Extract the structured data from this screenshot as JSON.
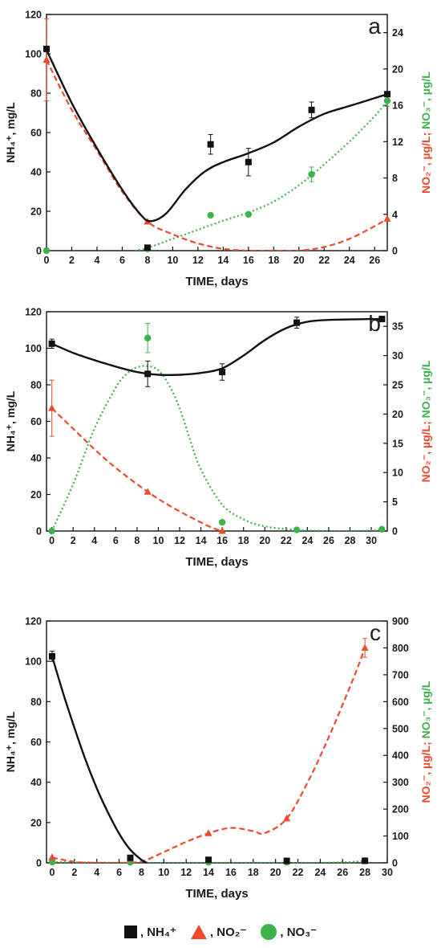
{
  "legend": [
    {
      "symbol": "square",
      "color": "#111111",
      "label": ", NH₄⁺"
    },
    {
      "symbol": "triangle",
      "color": "#ee4a2b",
      "label": ", NO₂⁻"
    },
    {
      "symbol": "circle",
      "color": "#3db34a",
      "label": ", NO₃⁻"
    }
  ],
  "chart_data": [
    {
      "type": "line",
      "panel_label": "a",
      "xlabel": "TIME, days",
      "ylabel_left": "NH₄⁺, mg/L",
      "ylabel_right_no2": "NO₂⁻, µg/L;",
      "ylabel_right_no3": " NO₃⁻, µg/L",
      "xlim": [
        0,
        27
      ],
      "xticks": [
        0,
        2,
        4,
        6,
        8,
        10,
        12,
        14,
        16,
        18,
        20,
        22,
        24,
        26
      ],
      "ylim_left": [
        0,
        120
      ],
      "yticks_left": [
        0,
        20,
        40,
        60,
        80,
        100,
        120
      ],
      "ylim_right": [
        0,
        26
      ],
      "yticks_right": [
        0,
        4,
        8,
        12,
        16,
        20,
        24
      ],
      "series": [
        {
          "name": "NH₄⁺",
          "axis": "left",
          "color": "#111111",
          "marker": "square",
          "line": "solid",
          "x": [
            0,
            8,
            13,
            16,
            21,
            27
          ],
          "y": [
            102.5,
            1.5,
            54,
            45,
            71.5,
            79.5
          ],
          "err": [
            0,
            0,
            5,
            7,
            4,
            0
          ],
          "curve_x": [
            0,
            2,
            4,
            6,
            7.5,
            8.3,
            9.5,
            11,
            12.5,
            14,
            16,
            18,
            20,
            22,
            24,
            26,
            27
          ],
          "curve_y": [
            102,
            75,
            52,
            31,
            18,
            15,
            19,
            31,
            40,
            45,
            49.5,
            55,
            63,
            69.5,
            73.5,
            77.5,
            79.5
          ]
        },
        {
          "name": "NO₂⁻",
          "axis": "right",
          "color": "#ee4a2b",
          "marker": "triangle",
          "line": "dashed",
          "x": [
            0,
            8,
            27
          ],
          "y": [
            21,
            3.2,
            3.5
          ],
          "err": [
            4.5,
            0,
            0
          ],
          "curve_x": [
            0,
            2,
            4,
            6,
            8,
            10,
            12,
            14,
            16,
            18,
            20,
            22,
            24,
            26,
            27
          ],
          "curve_y": [
            21,
            15.5,
            11,
            6.5,
            3.2,
            1.8,
            0.8,
            0.2,
            0,
            0,
            0,
            0.4,
            1.3,
            2.7,
            3.5
          ]
        },
        {
          "name": "NO₃⁻",
          "axis": "right",
          "color": "#3db34a",
          "marker": "circle",
          "line": "dotted",
          "x": [
            0,
            8,
            13,
            16,
            21,
            27
          ],
          "y": [
            0,
            0.2,
            3.9,
            4,
            8.4,
            16.5
          ],
          "err": [
            0,
            0,
            0,
            0,
            0.8,
            0.6
          ],
          "curve_x": [
            7,
            8,
            10,
            12,
            14,
            16,
            18,
            20,
            22,
            24,
            26,
            27
          ],
          "curve_y": [
            0,
            0.3,
            1.3,
            2.3,
            3.3,
            4.2,
            5.4,
            7.2,
            9.5,
            12,
            14.8,
            16.5
          ]
        }
      ]
    },
    {
      "type": "line",
      "panel_label": "b",
      "xlabel": "TIME, days",
      "ylabel_left": "NH₄⁺, mg/L",
      "ylabel_right_no2": "NO₂⁻, µg/L;",
      "ylabel_right_no3": " NO₃⁻, µg/L",
      "xlim": [
        -0.5,
        31.5
      ],
      "xticks": [
        0,
        2,
        4,
        6,
        8,
        10,
        12,
        14,
        16,
        18,
        20,
        22,
        24,
        26,
        28,
        30
      ],
      "ylim_left": [
        0,
        120
      ],
      "yticks_left": [
        0,
        20,
        40,
        60,
        80,
        100,
        120
      ],
      "ylim_right": [
        0,
        37.5
      ],
      "yticks_right": [
        0,
        5,
        10,
        15,
        20,
        25,
        30,
        35
      ],
      "series": [
        {
          "name": "NH₄⁺",
          "axis": "left",
          "color": "#111111",
          "marker": "square",
          "line": "solid",
          "x": [
            0,
            9,
            16,
            23,
            31
          ],
          "y": [
            102.5,
            86,
            87,
            114,
            116
          ],
          "err": [
            2.5,
            7,
            4.5,
            3,
            0
          ],
          "curve_x": [
            0,
            2,
            4,
            6,
            8,
            10,
            12,
            14,
            16,
            18,
            20,
            22,
            24,
            26,
            28,
            30,
            31
          ],
          "curve_y": [
            102.5,
            97.5,
            93.5,
            90,
            87,
            85.5,
            85.5,
            86.5,
            89,
            96,
            104.5,
            111,
            114.5,
            115.5,
            115.8,
            116,
            116
          ]
        },
        {
          "name": "NO₂⁻",
          "axis": "right",
          "color": "#ee4a2b",
          "marker": "triangle",
          "line": "dashed",
          "x": [
            0,
            9,
            16
          ],
          "y": [
            21,
            6.7,
            0
          ],
          "err": [
            4.8,
            0,
            0
          ],
          "curve_x": [
            0,
            2,
            4,
            6,
            9,
            11,
            13,
            15,
            16
          ],
          "curve_y": [
            21,
            17.5,
            14,
            10.8,
            6.7,
            4.4,
            2.4,
            0.6,
            0
          ]
        },
        {
          "name": "NO₃⁻",
          "axis": "right",
          "color": "#3db34a",
          "marker": "circle",
          "line": "dotted",
          "x": [
            0,
            9,
            16,
            23,
            31
          ],
          "y": [
            0,
            33,
            1.5,
            0.2,
            0.3
          ],
          "err": [
            0,
            2.5,
            0,
            0,
            0
          ],
          "curve_x": [
            0,
            2,
            4,
            6,
            7,
            8,
            9,
            10,
            11,
            12,
            13,
            14,
            16,
            18,
            20,
            23,
            26,
            28,
            30,
            31
          ],
          "curve_y": [
            0,
            8,
            17.5,
            24.5,
            26.8,
            28,
            28.2,
            27.5,
            25,
            21,
            15.5,
            10.5,
            4.5,
            2,
            0.8,
            0.2,
            0,
            0,
            0.1,
            0.3
          ]
        }
      ]
    },
    {
      "type": "line",
      "panel_label": "c",
      "xlabel": "TIME, days",
      "ylabel_left": "NH₄⁺, mg/L",
      "ylabel_right_no2": "NO₂⁻, µg/L;",
      "ylabel_right_no3": " NO₃⁻, µg/L",
      "xlim": [
        -0.5,
        30
      ],
      "xticks": [
        0,
        2,
        4,
        6,
        8,
        10,
        12,
        14,
        16,
        18,
        20,
        22,
        24,
        26,
        28,
        30
      ],
      "ylim_left": [
        0,
        120
      ],
      "yticks_left": [
        0,
        20,
        40,
        60,
        80,
        100,
        120
      ],
      "ylim_right": [
        0,
        900
      ],
      "yticks_right": [
        0,
        100,
        200,
        300,
        400,
        500,
        600,
        700,
        800,
        900
      ],
      "series": [
        {
          "name": "NH₄⁺",
          "axis": "left",
          "color": "#111111",
          "marker": "square",
          "line": "solid",
          "x": [
            0,
            7,
            14,
            21,
            28
          ],
          "y": [
            102.5,
            2.5,
            1.5,
            1,
            1
          ],
          "err": [
            2.5,
            0,
            0,
            0,
            0
          ],
          "curve_x": [
            0,
            1,
            2,
            3,
            4,
            5,
            6,
            7,
            8,
            8.5
          ],
          "curve_y": [
            102.5,
            84,
            67,
            51,
            37,
            25,
            14.5,
            6.5,
            1.5,
            0
          ]
        },
        {
          "name": "NO₂⁻",
          "axis": "right",
          "color": "#ee4a2b",
          "marker": "triangle",
          "line": "dashed",
          "x": [
            0,
            14,
            21,
            28
          ],
          "y": [
            20,
            110,
            165,
            800
          ],
          "err": [
            0,
            0,
            0,
            35
          ],
          "curve_x": [
            0,
            2,
            4,
            6,
            8,
            10,
            12,
            14,
            16,
            18,
            19,
            21,
            23,
            25,
            27,
            28
          ],
          "curve_y": [
            20,
            4,
            0,
            0,
            5,
            40,
            78,
            110,
            130,
            118,
            110,
            165,
            310,
            490,
            690,
            800
          ]
        },
        {
          "name": "NO₃⁻",
          "axis": "right",
          "color": "#3db34a",
          "marker": "circle",
          "line": "dotted",
          "x": [
            0,
            7,
            14,
            21,
            28
          ],
          "y": [
            3,
            2,
            2,
            2,
            8
          ],
          "err": [
            0,
            0,
            0,
            0,
            0
          ],
          "curve_x": [
            0,
            4,
            8,
            12,
            16,
            20,
            24,
            27,
            28
          ],
          "curve_y": [
            3,
            1,
            0,
            0,
            0,
            0,
            0,
            4,
            8
          ]
        }
      ]
    }
  ]
}
